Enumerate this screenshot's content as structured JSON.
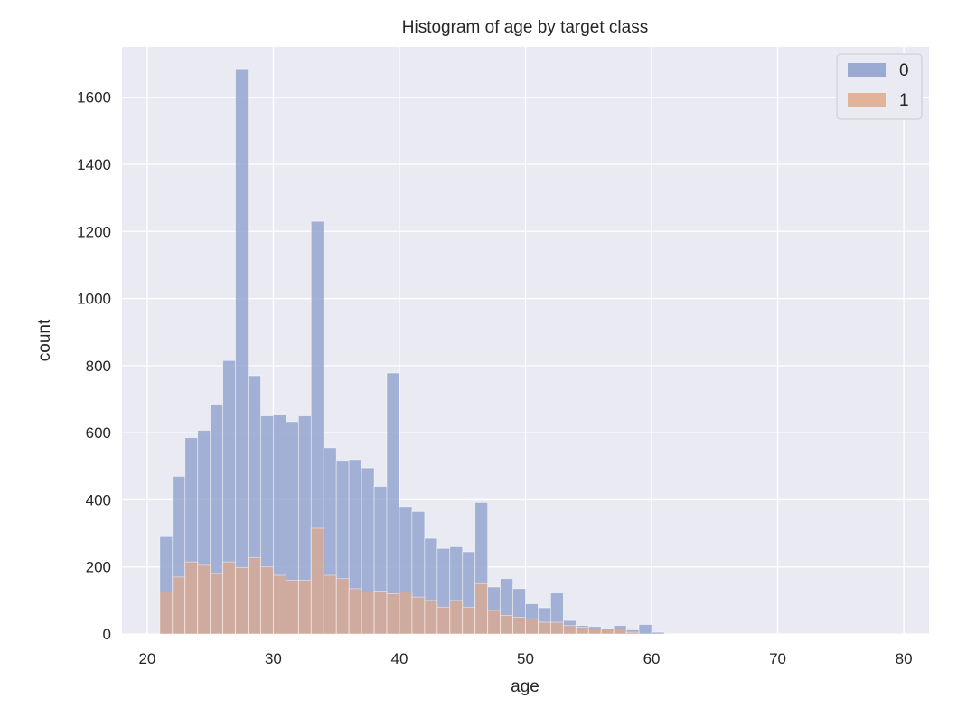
{
  "chart_data": {
    "type": "bar",
    "title": "Histogram of age by target class",
    "xlabel": "age",
    "ylabel": "count",
    "xlim": [
      18,
      82
    ],
    "ylim": [
      0,
      1750
    ],
    "xticks": [
      20,
      30,
      40,
      50,
      60,
      70,
      80
    ],
    "yticks": [
      0,
      200,
      400,
      600,
      800,
      1000,
      1200,
      1400,
      1600
    ],
    "grid": true,
    "legend_position": "top-right",
    "bin_start": 21,
    "bin_width": 1,
    "series": [
      {
        "name": "0",
        "color": "#8c9fcc",
        "values": [
          290,
          470,
          585,
          607,
          685,
          815,
          1685,
          770,
          650,
          655,
          633,
          650,
          1230,
          555,
          515,
          520,
          495,
          440,
          778,
          380,
          365,
          285,
          255,
          260,
          245,
          392,
          140,
          165,
          135,
          90,
          78,
          122,
          40,
          25,
          22,
          15,
          25,
          12,
          28,
          5,
          0,
          0,
          0,
          0,
          0,
          0,
          0,
          0,
          0,
          0,
          0,
          0,
          0,
          0,
          0,
          0,
          0,
          0
        ]
      },
      {
        "name": "1",
        "color": "#e0a889",
        "values": [
          125,
          170,
          215,
          205,
          180,
          215,
          198,
          228,
          200,
          175,
          160,
          160,
          315,
          175,
          165,
          135,
          125,
          128,
          120,
          125,
          110,
          100,
          80,
          100,
          80,
          150,
          70,
          55,
          50,
          45,
          35,
          35,
          25,
          20,
          15,
          15,
          15,
          5,
          0,
          0,
          0,
          0,
          0,
          0,
          0,
          0,
          0,
          0,
          0,
          0,
          0,
          0,
          0,
          0,
          0,
          0,
          0,
          0
        ]
      }
    ]
  }
}
